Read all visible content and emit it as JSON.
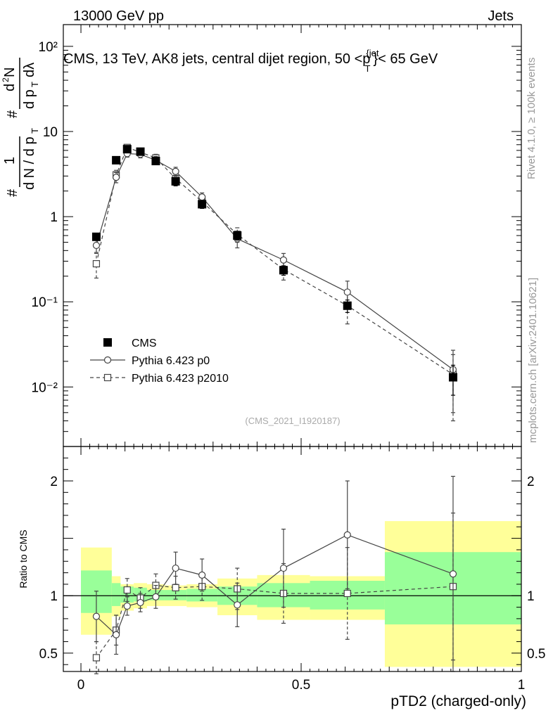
{
  "header": {
    "left": "13000 GeV pp",
    "right": "Jets",
    "title": "CMS, 13 TeV, AK8 jets, central dijet region, 50 <p",
    "title_sup": "{jet",
    "title_sub": "T",
    "title_end": "}< 65 GeV"
  },
  "side": {
    "rivet": "Rivet 4.1.0, ≥ 100k events",
    "mcplots": "mcplots.cern.ch [arXiv:2401.10621]"
  },
  "analysis_tag": "(CMS_2021_I1920187)",
  "ylabel_main": "#  1/dN/dp_T  #  d²N/dp_T dλ",
  "chart_data": [
    {
      "type": "scatter",
      "name": "main",
      "yscale": "log",
      "ylim": [
        0.002,
        180
      ],
      "xlim": [
        -0.04,
        1.0
      ],
      "ytick_labels": [
        "10⁻²",
        "10⁻¹",
        "1",
        "10",
        "10²"
      ],
      "series": [
        {
          "name": "CMS",
          "marker": "filled-square",
          "x": [
            0.035,
            0.08,
            0.105,
            0.135,
            0.17,
            0.215,
            0.275,
            0.355,
            0.46,
            0.605,
            0.845
          ],
          "y": [
            0.58,
            4.6,
            6.2,
            5.8,
            4.5,
            2.6,
            1.4,
            0.6,
            0.235,
            0.09,
            0.013
          ],
          "err": [
            0.05,
            0.3,
            0.5,
            0.5,
            0.4,
            0.3,
            0.15,
            0.07,
            0.03,
            0.015,
            0.005
          ]
        },
        {
          "name": "Pythia 6.423 p0",
          "marker": "open-circle",
          "line": "solid",
          "x": [
            0.035,
            0.08,
            0.105,
            0.135,
            0.17,
            0.215,
            0.275,
            0.355,
            0.46,
            0.605,
            0.845
          ],
          "y": [
            0.46,
            2.9,
            5.5,
            5.4,
            4.6,
            3.4,
            1.7,
            0.55,
            0.31,
            0.13,
            0.016
          ],
          "err": [
            0.08,
            0.4,
            0.5,
            0.5,
            0.5,
            0.4,
            0.2,
            0.12,
            0.06,
            0.045,
            0.011
          ]
        },
        {
          "name": "Pythia 6.423 p2010",
          "marker": "open-square",
          "line": "dashed",
          "x": [
            0.035,
            0.08,
            0.105,
            0.135,
            0.17,
            0.215,
            0.275,
            0.355,
            0.46,
            0.605,
            0.845
          ],
          "y": [
            0.28,
            3.1,
            6.5,
            5.7,
            4.9,
            2.8,
            1.5,
            0.62,
            0.24,
            0.09,
            0.014
          ],
          "err": [
            0.09,
            0.4,
            0.5,
            0.5,
            0.5,
            0.35,
            0.2,
            0.12,
            0.06,
            0.035,
            0.01
          ]
        }
      ]
    },
    {
      "type": "scatter",
      "name": "ratio",
      "ylabel": "Ratio to CMS",
      "xlabel": "pTD2 (charged-only)",
      "ylim": [
        0.34,
        2.3
      ],
      "xlim": [
        -0.04,
        1.0
      ],
      "xtick_labels": [
        "0",
        "0.5",
        "1"
      ],
      "ytick_labels": [
        "0.5",
        "1",
        "2"
      ],
      "band_edges": [
        0,
        0.07,
        0.09,
        0.12,
        0.15,
        0.19,
        0.24,
        0.31,
        0.4,
        0.52,
        0.69,
        1.0
      ],
      "band_green": [
        [
          0.85,
          1.22
        ],
        [
          0.91,
          1.11
        ],
        [
          0.94,
          1.08
        ],
        [
          0.95,
          1.07
        ],
        [
          0.96,
          1.05
        ],
        [
          0.96,
          1.05
        ],
        [
          0.95,
          1.06
        ],
        [
          0.92,
          1.08
        ],
        [
          0.9,
          1.11
        ],
        [
          0.88,
          1.13
        ],
        [
          0.75,
          1.38
        ]
      ],
      "band_yellow": [
        [
          0.66,
          1.42
        ],
        [
          0.82,
          1.17
        ],
        [
          0.87,
          1.1
        ],
        [
          0.89,
          1.11
        ],
        [
          0.91,
          1.1
        ],
        [
          0.91,
          1.09
        ],
        [
          0.9,
          1.1
        ],
        [
          0.83,
          1.15
        ],
        [
          0.79,
          1.18
        ],
        [
          0.79,
          1.17
        ],
        [
          0.38,
          1.65
        ]
      ],
      "series": [
        {
          "name": "Pythia 6.423 p0",
          "marker": "open-circle",
          "line": "solid",
          "x": [
            0.035,
            0.08,
            0.105,
            0.135,
            0.17,
            0.215,
            0.275,
            0.355,
            0.46,
            0.605,
            0.845
          ],
          "y": [
            0.82,
            0.66,
            0.91,
            0.94,
            0.99,
            1.24,
            1.18,
            0.92,
            1.24,
            1.53,
            1.19
          ],
          "err": [
            0.22,
            0.17,
            0.08,
            0.08,
            0.1,
            0.14,
            0.14,
            0.19,
            0.34,
            0.47,
            0.85
          ]
        },
        {
          "name": "Pythia 6.423 p2010",
          "marker": "open-square",
          "line": "dashed",
          "x": [
            0.035,
            0.08,
            0.105,
            0.135,
            0.17,
            0.215,
            0.275,
            0.355,
            0.46,
            0.605,
            0.845
          ],
          "y": [
            0.46,
            0.7,
            1.05,
            0.98,
            1.09,
            1.07,
            1.08,
            1.06,
            1.02,
            1.02,
            1.08
          ],
          "err": [
            0.14,
            0.13,
            0.1,
            0.09,
            0.1,
            0.1,
            0.12,
            0.18,
            0.26,
            0.4,
            0.64
          ]
        }
      ]
    }
  ],
  "legend": [
    {
      "label": "CMS",
      "marker": "filled-square"
    },
    {
      "label": "Pythia 6.423 p0",
      "marker": "open-circle"
    },
    {
      "label": "Pythia 6.423 p2010",
      "marker": "open-square"
    }
  ],
  "colors": {
    "green": "#99ff99",
    "yellow": "#ffff99",
    "line": "#444444",
    "data": "#000000"
  }
}
